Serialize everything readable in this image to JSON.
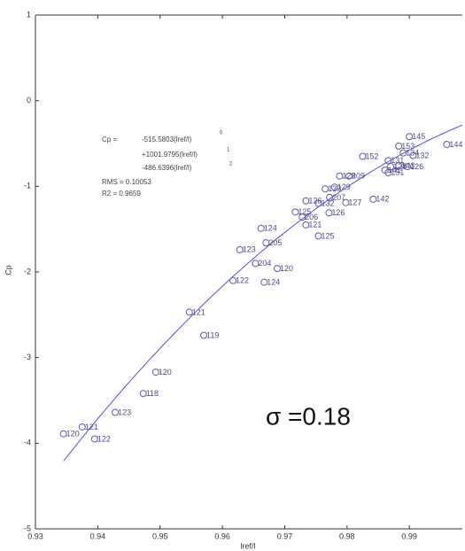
{
  "chart_data": {
    "type": "scatter",
    "x_label": "lref/l",
    "y_label": "Cp",
    "xlim": [
      0.93,
      0.9985
    ],
    "ylim": [
      -5,
      1
    ],
    "xticks": [
      0.93,
      0.94,
      0.95,
      0.96,
      0.97,
      0.98,
      0.99
    ],
    "yticks": [
      1,
      0,
      -1,
      -2,
      -3,
      -4,
      -5
    ],
    "color": "#5a5aa8",
    "fit_color": "#5050e0",
    "fit": {
      "prefix": "Cp =",
      "coefficients": [
        -515.5803,
        1001.9795,
        -486.6396
      ],
      "coefficient_labels": [
        "-515.5803(lref/l)",
        "+1001.9795(lref/l)",
        "-486.6396(lref/l)"
      ],
      "exponents": [
        0,
        1,
        2
      ],
      "rms": "RMS = 0.10053",
      "r2": "R2 = 0.9659"
    },
    "annotation": "σ =0.18",
    "labels": [
      "120",
      "121",
      "122",
      "123",
      "118",
      "120",
      "119",
      "121",
      "122",
      "124",
      "204",
      "120",
      "123",
      "205",
      "124",
      "125",
      "121",
      "206",
      "125",
      "126",
      "126",
      "132",
      "207",
      "133",
      "129",
      "127",
      "142",
      "128",
      "209",
      "152",
      "131",
      "141",
      "151",
      "128",
      "143",
      "126",
      "145",
      "153",
      "134",
      "132",
      "144"
    ],
    "x": [
      0.9345,
      0.9375,
      0.9395,
      0.9428,
      0.9473,
      0.9493,
      0.957,
      0.9547,
      0.9617,
      0.9667,
      0.9653,
      0.9688,
      0.9628,
      0.967,
      0.9662,
      0.9754,
      0.9734,
      0.9728,
      0.9717,
      0.9771,
      0.9734,
      0.9754,
      0.9772,
      0.9765,
      0.978,
      0.9798,
      0.9842,
      0.9788,
      0.9803,
      0.9825,
      0.9866,
      0.9861,
      0.9866,
      0.987,
      0.9883,
      0.9897,
      0.99,
      0.9883,
      0.989,
      0.9906,
      0.996
    ],
    "values": [
      -3.89,
      -3.81,
      -3.95,
      -3.64,
      -3.42,
      -3.17,
      -2.74,
      -2.47,
      -2.1,
      -2.12,
      -1.9,
      -1.96,
      -1.74,
      -1.66,
      -1.49,
      -1.58,
      -1.45,
      -1.36,
      -1.3,
      -1.31,
      -1.17,
      -1.2,
      -1.13,
      -1.03,
      -1.01,
      -1.19,
      -1.15,
      -0.88,
      -0.88,
      -0.65,
      -0.7,
      -0.81,
      -0.84,
      -0.77,
      -0.76,
      -0.77,
      -0.42,
      -0.53,
      -0.61,
      -0.64,
      -0.51
    ]
  }
}
